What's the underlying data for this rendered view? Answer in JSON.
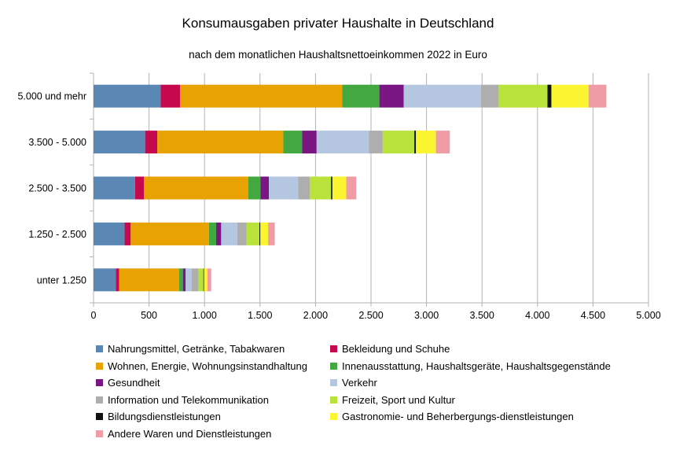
{
  "chart_data": {
    "type": "bar",
    "orientation": "horizontal",
    "stacked": true,
    "title": "Konsumausgaben privater Haushalte in Deutschland",
    "subtitle": "nach dem monatlichen Haushaltsnettoeinkommen 2022 in Euro",
    "categories": [
      "5.000 und mehr",
      "3.500 - 5.000",
      "2.500 - 3.500",
      "1.250 - 2.500",
      "unter 1.250"
    ],
    "xlim": [
      0,
      5000
    ],
    "xticks": [
      0,
      500,
      1000,
      1500,
      2000,
      2500,
      3000,
      3500,
      4000,
      4500,
      5000
    ],
    "xtick_labels": [
      "0",
      "500",
      "1.000",
      "1.500",
      "2.000",
      "2.500",
      "3.000",
      "3.500",
      "4.000",
      "4.500",
      "5.000"
    ],
    "grid": "vertical",
    "legend_position": "bottom",
    "series": [
      {
        "name": "Nahrungsmittel, Getränke, Tabakwaren",
        "color": "#5b87b5",
        "values": [
          605,
          465,
          375,
          280,
          200
        ]
      },
      {
        "name": "Bekleidung und Schuhe",
        "color": "#c6094e",
        "values": [
          175,
          110,
          80,
          55,
          30
        ]
      },
      {
        "name": "Wohnen, Energie, Wohnungsinstandhaltung",
        "color": "#e8a202",
        "values": [
          1460,
          1135,
          940,
          705,
          540
        ]
      },
      {
        "name": "Innenausstattung, Haushaltsgeräte, Haushaltsgegenstände",
        "color": "#43a840",
        "values": [
          335,
          170,
          110,
          65,
          35
        ]
      },
      {
        "name": "Gesundheit",
        "color": "#7a1684",
        "values": [
          220,
          130,
          75,
          45,
          25
        ]
      },
      {
        "name": "Verkehr",
        "color": "#b4c6e0",
        "values": [
          695,
          470,
          265,
          145,
          55
        ]
      },
      {
        "name": "Information und Telekommunikation",
        "color": "#aeaeae",
        "values": [
          160,
          125,
          105,
          85,
          60
        ]
      },
      {
        "name": "Freizeit, Sport und Kultur",
        "color": "#b9e23a",
        "values": [
          440,
          285,
          190,
          115,
          45
        ]
      },
      {
        "name": "Bildungsdienstleistungen",
        "color": "#111111",
        "values": [
          35,
          15,
          12,
          8,
          5
        ]
      },
      {
        "name": "Gastronomie- und Beherbergungs-dienstleistungen",
        "color": "#fbf531",
        "values": [
          335,
          180,
          125,
          70,
          30
        ]
      },
      {
        "name": "Andere Waren und Dienstleistungen",
        "color": "#ef9ca6",
        "values": [
          160,
          125,
          90,
          60,
          35
        ]
      }
    ]
  }
}
